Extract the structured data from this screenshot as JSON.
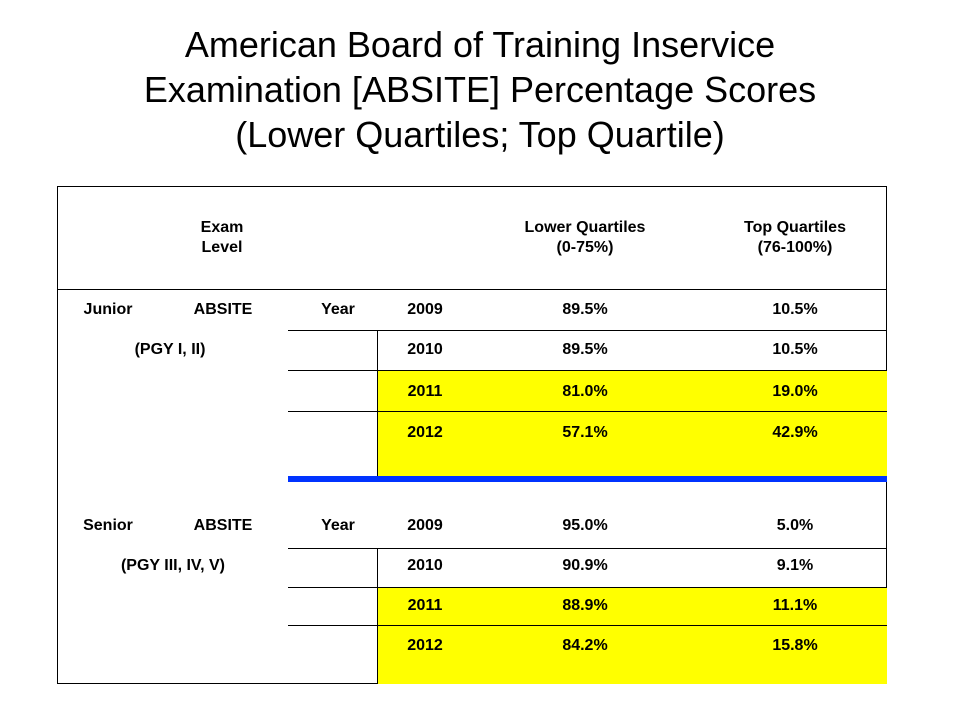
{
  "title": {
    "line1": "American Board of Training Inservice",
    "line2": "Examination [ABSITE] Percentage Scores",
    "line3": "(Lower Quartiles; Top Quartile)"
  },
  "header": {
    "exam_line1": "Exam",
    "exam_line2": "Level",
    "lower_line1": "Lower Quartiles",
    "lower_line2": "(0-75%)",
    "top_line1": "Top Quartiles",
    "top_line2": "(76-100%)"
  },
  "junior": {
    "label_a": "Junior",
    "label_b": "ABSITE",
    "label_year": "Year",
    "sub": "(PGY I, II)",
    "rows": [
      {
        "year": "2009",
        "lower": "89.5%",
        "top": "10.5%"
      },
      {
        "year": "2010",
        "lower": "89.5%",
        "top": "10.5%"
      },
      {
        "year": "2011",
        "lower": "81.0%",
        "top": "19.0%"
      },
      {
        "year": "2012",
        "lower": "57.1%",
        "top": "42.9%"
      }
    ]
  },
  "senior": {
    "label_a": "Senior",
    "label_b": "ABSITE",
    "label_year": "Year",
    "sub": "(PGY III, IV, V)",
    "rows": [
      {
        "year": "2009",
        "lower": "95.0%",
        "top": "5.0%"
      },
      {
        "year": "2010",
        "lower": "90.9%",
        "top": "9.1%"
      },
      {
        "year": "2011",
        "lower": "88.9%",
        "top": "11.1%"
      },
      {
        "year": "2012",
        "lower": "84.2%",
        "top": "15.8%"
      }
    ]
  },
  "colors": {
    "highlight": "#ffff00",
    "separator": "#0033ff"
  }
}
